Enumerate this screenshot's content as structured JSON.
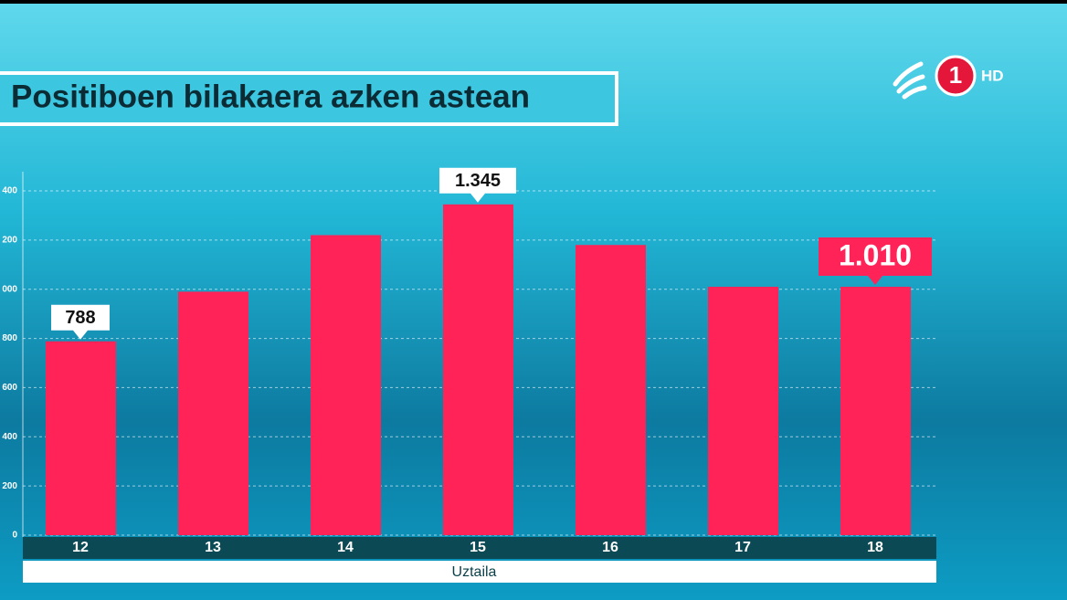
{
  "chart_data": {
    "type": "bar",
    "title": "Positiboen bilakaera azken astean",
    "xlabel": "Uztaila",
    "categories": [
      "12",
      "13",
      "14",
      "15",
      "16",
      "17",
      "18"
    ],
    "values": [
      788,
      990,
      1220,
      1345,
      1180,
      1010,
      1010
    ],
    "value_labels": [
      "788",
      null,
      null,
      "1.345",
      null,
      null,
      "1.010"
    ],
    "color": "#ff2358",
    "ylim": [
      0,
      1400
    ],
    "yticks": [
      0,
      200,
      {
        "value": 400,
        "label": "400"
      },
      600,
      800,
      {
        "value": 1000,
        "label": "000"
      },
      {
        "value": 1200,
        "label": "200"
      },
      {
        "value": 1400,
        "label": "400"
      }
    ],
    "grid": true
  },
  "logo": {
    "channel": "1",
    "badge": "HD"
  }
}
